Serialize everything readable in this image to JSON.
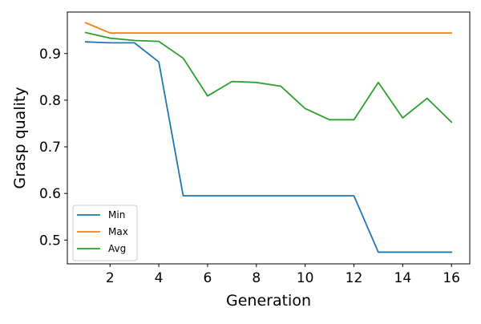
{
  "chart_data": {
    "type": "line",
    "title": "",
    "xlabel": "Generation",
    "ylabel": "Grasp quality",
    "xlim": [
      0.25,
      16.75
    ],
    "ylim": [
      0.449,
      0.989
    ],
    "xticks": [
      2,
      4,
      6,
      8,
      10,
      12,
      14,
      16
    ],
    "yticks": [
      0.5,
      0.6,
      0.7,
      0.8,
      0.9
    ],
    "grid": false,
    "legend_position": "lower-left",
    "x": [
      1,
      2,
      3,
      4,
      5,
      6,
      7,
      8,
      9,
      10,
      11,
      12,
      13,
      14,
      15,
      16
    ],
    "series": [
      {
        "name": "Min",
        "color": "#1f77b4",
        "values": [
          0.925,
          0.923,
          0.923,
          0.882,
          0.595,
          0.595,
          0.595,
          0.595,
          0.595,
          0.595,
          0.595,
          0.595,
          0.474,
          0.474,
          0.474,
          0.474
        ]
      },
      {
        "name": "Max",
        "color": "#ff7f0e",
        "values": [
          0.966,
          0.944,
          0.944,
          0.944,
          0.944,
          0.944,
          0.944,
          0.944,
          0.944,
          0.944,
          0.944,
          0.944,
          0.944,
          0.944,
          0.944,
          0.944
        ]
      },
      {
        "name": "Avg",
        "color": "#2ca02c",
        "values": [
          0.945,
          0.933,
          0.928,
          0.926,
          0.89,
          0.809,
          0.84,
          0.838,
          0.83,
          0.782,
          0.758,
          0.758,
          0.838,
          0.762,
          0.804,
          0.753
        ]
      }
    ]
  }
}
